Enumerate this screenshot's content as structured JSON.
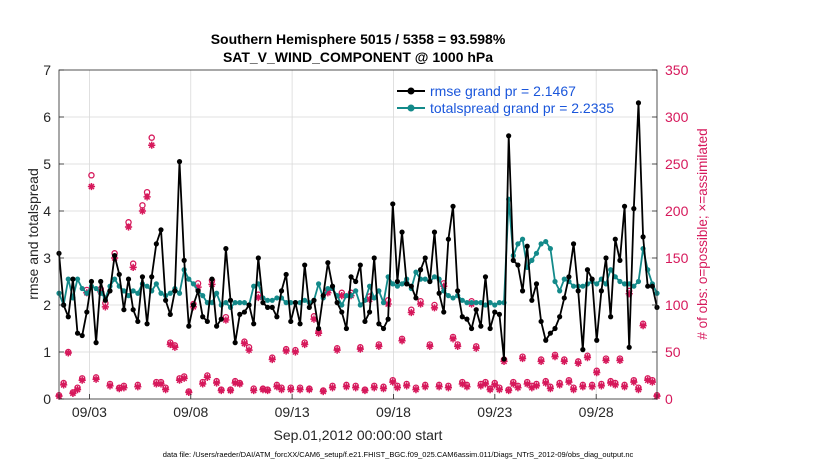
{
  "chart_data": {
    "type": "line",
    "title": "Southern Hemisphere 5015 / 5358 = 93.598%",
    "subtitle": "SAT_V_WIND_COMPONENT @ 1000 hPa",
    "xlabel": "Sep.01,2012 00:00:00 start",
    "ylabel": "rmse and totalspread",
    "ylabel_right": "# of obs: o=possible; ×=assimilated",
    "footer": "data file: /Users/raeder/DAI/ATM_forcXX/CAM6_setup/f.e21.FHIST_BGC.f09_025.CAM6assim.011/Diags_NTrS_2012-09/obs_diag_output.nc",
    "x_range": [
      1.5,
      31.0
    ],
    "ylim": [
      0,
      7
    ],
    "ylim_right": [
      0,
      350
    ],
    "x_ticks": [
      3,
      8,
      13,
      18,
      23,
      28
    ],
    "x_tick_labels": [
      "09/03",
      "09/08",
      "09/13",
      "09/18",
      "09/23",
      "09/28"
    ],
    "y_ticks": [
      0,
      1,
      2,
      3,
      4,
      5,
      6,
      7
    ],
    "y_ticks_right": [
      0,
      50,
      100,
      150,
      200,
      250,
      300,
      350
    ],
    "grid": true,
    "legend_position": "top-right",
    "series": [
      {
        "name": "rmse grand pr = 2.1467",
        "color": "#000000",
        "marker": "*",
        "values": [
          3.1,
          2.0,
          1.75,
          2.55,
          1.4,
          1.35,
          1.85,
          2.5,
          1.2,
          2.5,
          2.1,
          2.3,
          3.05,
          2.65,
          1.9,
          2.55,
          1.9,
          1.65,
          2.6,
          1.6,
          2.6,
          3.3,
          3.6,
          2.1,
          1.8,
          2.3,
          5.05,
          2.95,
          1.55,
          2.0,
          2.3,
          1.75,
          1.65,
          2.55,
          1.55,
          1.7,
          3.2,
          2.1,
          1.2,
          1.8,
          1.85,
          2.0,
          1.6,
          3.0,
          2.05,
          1.95,
          1.95,
          1.75,
          2.3,
          2.65,
          1.65,
          2.05,
          1.6,
          2.85,
          1.95,
          2.1,
          1.5,
          2.2,
          2.9,
          2.4,
          2.05,
          1.85,
          1.5,
          2.6,
          2.5,
          2.85,
          1.65,
          1.85,
          3.0,
          1.6,
          1.5,
          1.7,
          4.15,
          2.5,
          3.55,
          2.45,
          2.4,
          2.15,
          2.75,
          3.0,
          2.5,
          3.55,
          2.25,
          1.85,
          3.4,
          4.1,
          2.3,
          1.75,
          1.7,
          1.5,
          1.9,
          1.55,
          2.6,
          1.5,
          1.85,
          1.8,
          0.85,
          5.6,
          2.95,
          2.85,
          2.3,
          3.25,
          2.1,
          2.45,
          1.65,
          1.25,
          1.4,
          1.5,
          1.75,
          2.15,
          2.6,
          3.3,
          2.3,
          1.05,
          2.75,
          2.55,
          1.25,
          2.3,
          3.0,
          1.75,
          3.4,
          2.95,
          4.1,
          1.1,
          4.05,
          6.3,
          3.45,
          2.4,
          2.4,
          1.95
        ],
        "display_name_hint": "rmse"
      },
      {
        "name": "totalspread grand pr = 2.2335",
        "color": "#138a8a",
        "marker": "o",
        "values": [
          2.25,
          2.0,
          2.55,
          2.15,
          2.55,
          2.35,
          2.25,
          2.4,
          2.35,
          2.25,
          2.15,
          2.4,
          2.55,
          2.4,
          2.3,
          2.2,
          2.3,
          2.25,
          2.45,
          2.4,
          2.3,
          2.45,
          2.25,
          2.2,
          2.25,
          2.35,
          2.25,
          2.75,
          2.55,
          2.45,
          2.3,
          2.2,
          2.05,
          2.05,
          2.25,
          2.0,
          2.05,
          1.95,
          2.05,
          2.05,
          2.05,
          2.0,
          2.4,
          2.45,
          2.15,
          2.1,
          2.1,
          2.15,
          2.15,
          2.05,
          2.05,
          2.05,
          2.05,
          2.1,
          2.05,
          2.1,
          2.45,
          2.15,
          2.35,
          2.35,
          2.2,
          2.0,
          2.2,
          2.2,
          2.3,
          2.0,
          2.1,
          2.4,
          2.15,
          2.3,
          2.05,
          2.6,
          2.45,
          2.4,
          2.45,
          2.55,
          2.35,
          2.7,
          2.55,
          2.55,
          2.5,
          2.6,
          2.55,
          2.3,
          2.2,
          2.15,
          2.2,
          2.1,
          2.05,
          2.05,
          2.05,
          2.05,
          2.0,
          2.05,
          2.0,
          2.05,
          2.05,
          4.25,
          3.05,
          3.3,
          3.4,
          2.8,
          2.95,
          3.1,
          3.3,
          3.35,
          3.2,
          2.5,
          2.3,
          2.55,
          2.5,
          2.4,
          2.4,
          2.4,
          2.45,
          2.5,
          2.45,
          2.55,
          2.45,
          2.75,
          2.6,
          2.5,
          2.45,
          2.45,
          2.4,
          2.5,
          3.2,
          2.75,
          2.45,
          2.25
        ]
      }
    ],
    "obs_possible": {
      "name": "possible",
      "color": "#d6185b",
      "marker": "o",
      "values": [
        4,
        17,
        50,
        7,
        12,
        22,
        116,
        238,
        23,
        117,
        102,
        16,
        155,
        12,
        14,
        188,
        144,
        15,
        206,
        220,
        278,
        18,
        18,
        12,
        60,
        57,
        22,
        24,
        8,
        101,
        123,
        18,
        25,
        126,
        19,
        10,
        87,
        10,
        19,
        17,
        61,
        55,
        11,
        111,
        11,
        10,
        44,
        15,
        12,
        53,
        12,
        52,
        12,
        60,
        11,
        88,
        72,
        9,
        116,
        14,
        54,
        113,
        15,
        113,
        14,
        55,
        10,
        109,
        14,
        58,
        13,
        105,
        20,
        14,
        64,
        16,
        95,
        12,
        104,
        15,
        58,
        100,
        15,
        123,
        14,
        66,
        58,
        18,
        15,
        104,
        56,
        16,
        18,
        11,
        17,
        12,
        42,
        10,
        18,
        14,
        45,
        18,
        14,
        16,
        42,
        19,
        13,
        47,
        17,
        42,
        20,
        12,
        40,
        15,
        46,
        15,
        30,
        16,
        43,
        19,
        17,
        43,
        15,
        115,
        20,
        12,
        80,
        22,
        20,
        4
      ]
    },
    "obs_assimilated": {
      "name": "assimilated",
      "color": "#d6185b",
      "marker": "*",
      "values": [
        3,
        15,
        49,
        6,
        10,
        20,
        113,
        226,
        21,
        114,
        98,
        14,
        150,
        11,
        12,
        183,
        140,
        13,
        200,
        215,
        270,
        16,
        16,
        10,
        58,
        55,
        20,
        22,
        7,
        98,
        119,
        16,
        23,
        122,
        17,
        9,
        84,
        9,
        17,
        16,
        59,
        52,
        9,
        108,
        10,
        9,
        42,
        13,
        10,
        51,
        10,
        50,
        10,
        58,
        10,
        85,
        70,
        8,
        113,
        12,
        52,
        110,
        13,
        110,
        12,
        53,
        9,
        106,
        12,
        56,
        11,
        101,
        18,
        12,
        62,
        14,
        92,
        10,
        101,
        13,
        56,
        97,
        13,
        120,
        12,
        64,
        56,
        16,
        13,
        101,
        54,
        14,
        16,
        10,
        15,
        10,
        40,
        9,
        16,
        12,
        43,
        16,
        12,
        14,
        40,
        17,
        11,
        45,
        15,
        40,
        18,
        10,
        38,
        13,
        44,
        13,
        28,
        14,
        41,
        17,
        15,
        41,
        13,
        112,
        18,
        10,
        78,
        20,
        18,
        3
      ]
    }
  }
}
